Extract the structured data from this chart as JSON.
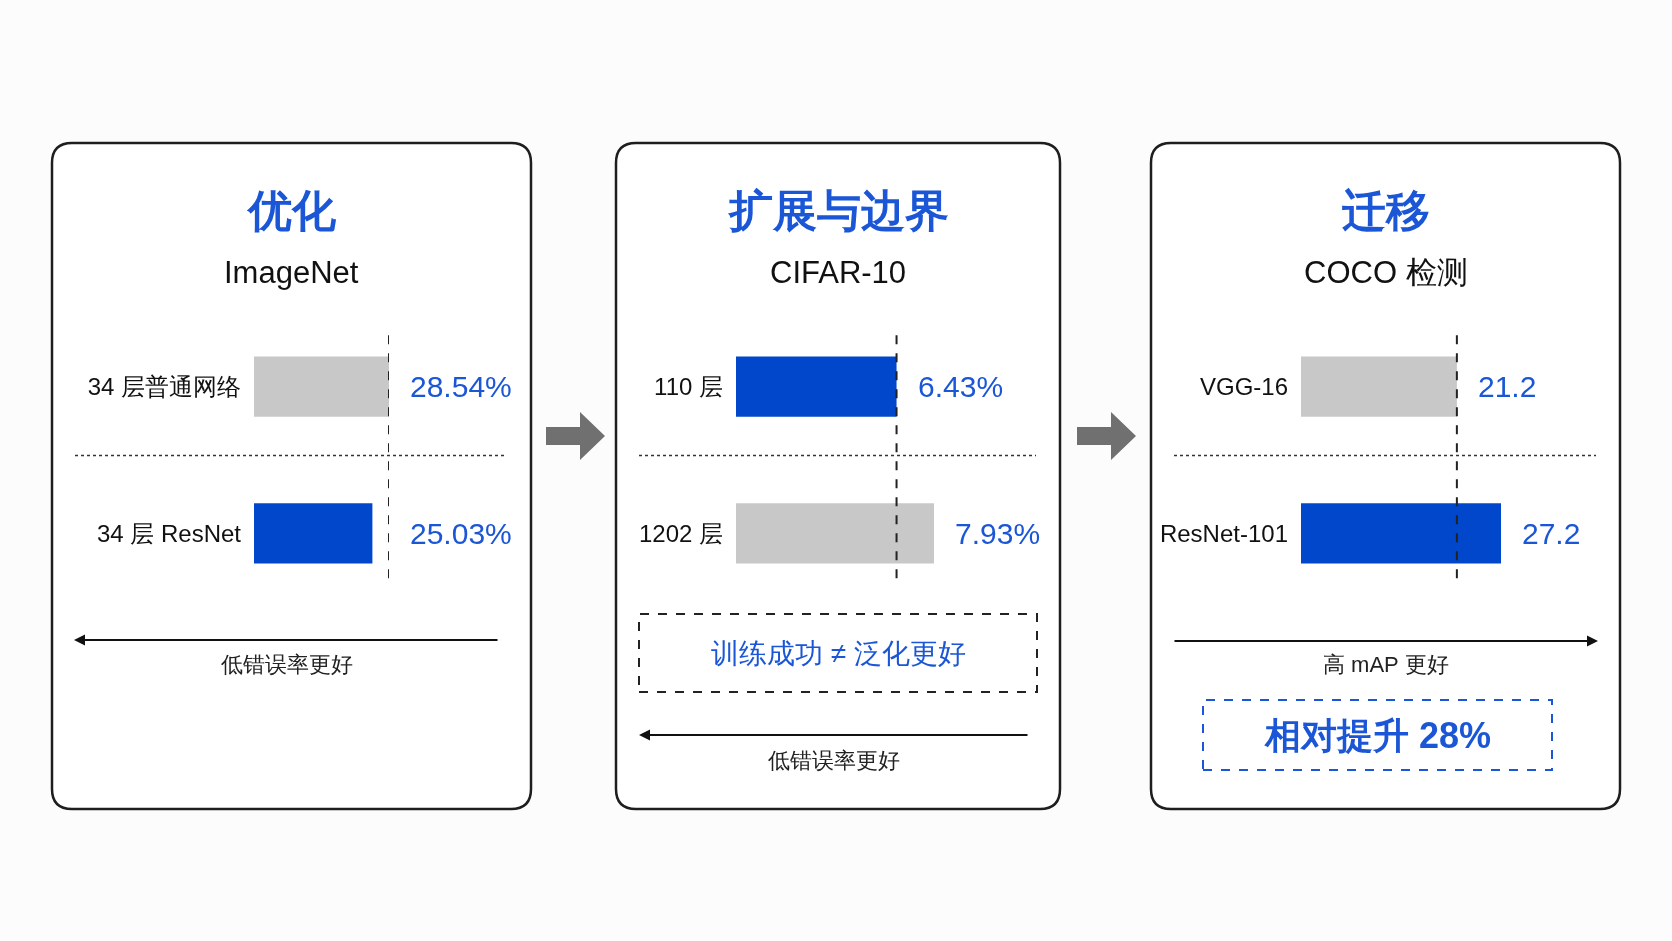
{
  "chart_data": [
    {
      "type": "bar",
      "orientation": "horizontal",
      "title": "优化",
      "subtitle": "ImageNet",
      "categories": [
        "34 层普通网络",
        "34 层 ResNet"
      ],
      "values": [
        28.54,
        25.03
      ],
      "colors": [
        "#c8c8c8",
        "#0047cc"
      ],
      "value_labels": [
        "28.54%",
        "25.03%"
      ],
      "tick_labels": "y",
      "grid": "y",
      "ref_lines": [
        {
          "axis": "x",
          "value": 28.54,
          "color": "#222222",
          "line_style": "dashed"
        }
      ],
      "annotations": [
        "低错误率更好"
      ]
    },
    {
      "type": "bar",
      "orientation": "horizontal",
      "title": "扩展与边界",
      "subtitle": "CIFAR-10",
      "categories": [
        "110 层",
        "1202 层"
      ],
      "values": [
        6.43,
        7.93
      ],
      "colors": [
        "#0047cc",
        "#c8c8c8"
      ],
      "value_labels": [
        "6.43%",
        "7.93%"
      ],
      "tick_labels": "y",
      "grid": "y",
      "ref_lines": [
        {
          "axis": "x",
          "value": 6.43,
          "color": "#222222",
          "line_style": "dashed"
        }
      ],
      "annotations": [
        "训练成功 ≠ 泛化更好",
        "低错误率更好"
      ]
    },
    {
      "type": "bar",
      "orientation": "horizontal",
      "title": "迁移",
      "subtitle": "COCO 检测",
      "categories": [
        "VGG-16",
        "ResNet-101"
      ],
      "values": [
        21.2,
        27.2
      ],
      "colors": [
        "#c8c8c8",
        "#0047cc"
      ],
      "value_labels": [
        "21.2",
        "27.2"
      ],
      "tick_labels": "y",
      "grid": "y",
      "ref_lines": [
        {
          "axis": "x",
          "value": 21.2,
          "color": "#222222",
          "line_style": "dashed"
        }
      ],
      "annotations": [
        "高 mAP 更好",
        "相对提升 28%"
      ]
    }
  ]
}
